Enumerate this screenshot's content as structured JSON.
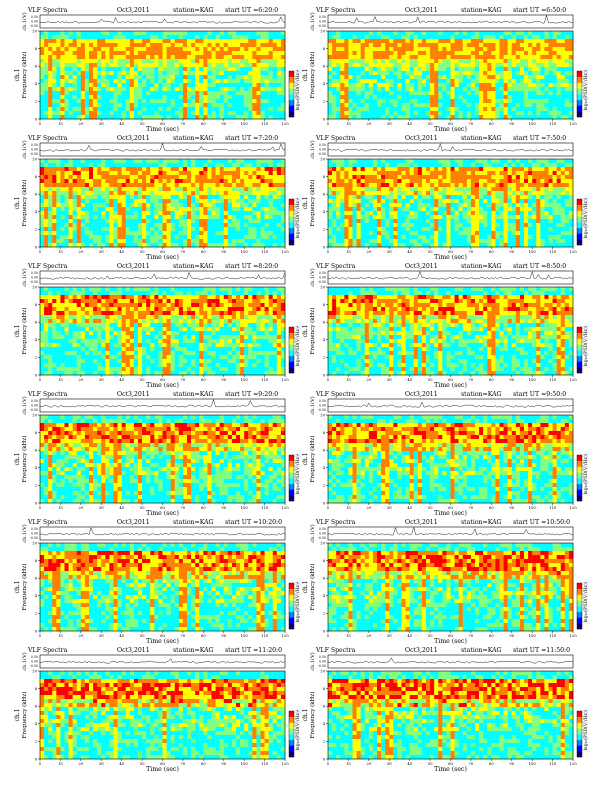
{
  "page": {
    "header_prefix": "VLF Spectra",
    "trace_label": "ch.1(V)",
    "freq_label": "Frequency (kHz)",
    "channel_label": "ch.1",
    "time_label": "Time (sec)",
    "colorbar_label": "log₁₀(PSD(V²/Hz))"
  },
  "colors": {
    "colormap": [
      "#000080",
      "#0000ff",
      "#0080ff",
      "#00ffff",
      "#80ff80",
      "#ffff00",
      "#ff8000",
      "#ff0000"
    ],
    "trace": "#202020",
    "axis": "#000000"
  },
  "chart_data": {
    "type": "heatmap",
    "description_kind": "VLF spectrogram grid",
    "time_ticks": [
      "0",
      "10",
      "20",
      "30",
      "40",
      "50",
      "60",
      "70",
      "80",
      "90",
      "100",
      "110",
      "120"
    ],
    "freq_ticks": [
      "0",
      "2",
      "4",
      "6",
      "8",
      "10"
    ],
    "trace_ticks": [
      "0.50",
      "0.00",
      "-0.50"
    ],
    "xlim": [
      0,
      120
    ],
    "ylim": [
      0,
      10
    ],
    "panels": [
      {
        "date": "Oct3,2011",
        "station": "station=KAG",
        "start": "start UT =6:20:0"
      },
      {
        "date": "Oct3,2011",
        "station": "station=KAG",
        "start": "start UT =6:50:0"
      },
      {
        "date": "Oct3,2011",
        "station": "station=KAG",
        "start": "start UT =7:20:0"
      },
      {
        "date": "Oct3,2011",
        "station": "station=KAG",
        "start": "start UT =7:50:0"
      },
      {
        "date": "Oct3,2011",
        "station": "station=KAG",
        "start": "start UT =8:20:0"
      },
      {
        "date": "Oct3,2011",
        "station": "station=KAG",
        "start": "start UT =8:50:0"
      },
      {
        "date": "Oct3,2011",
        "station": "station=KAG",
        "start": "start UT =9:20:0"
      },
      {
        "date": "Oct3,2011",
        "station": "station=KAG",
        "start": "start UT =9:50:0"
      },
      {
        "date": "Oct3,2011",
        "station": "station=KAG",
        "start": "start UT =10:20:0"
      },
      {
        "date": "Oct3,2011",
        "station": "station=KAG",
        "start": "start UT =10:50:0"
      },
      {
        "date": "Oct3,2011",
        "station": "station=KAG",
        "start": "start UT =11:20:0"
      },
      {
        "date": "Oct3,2011",
        "station": "station=KAG",
        "start": "start UT =11:50:0"
      }
    ]
  }
}
